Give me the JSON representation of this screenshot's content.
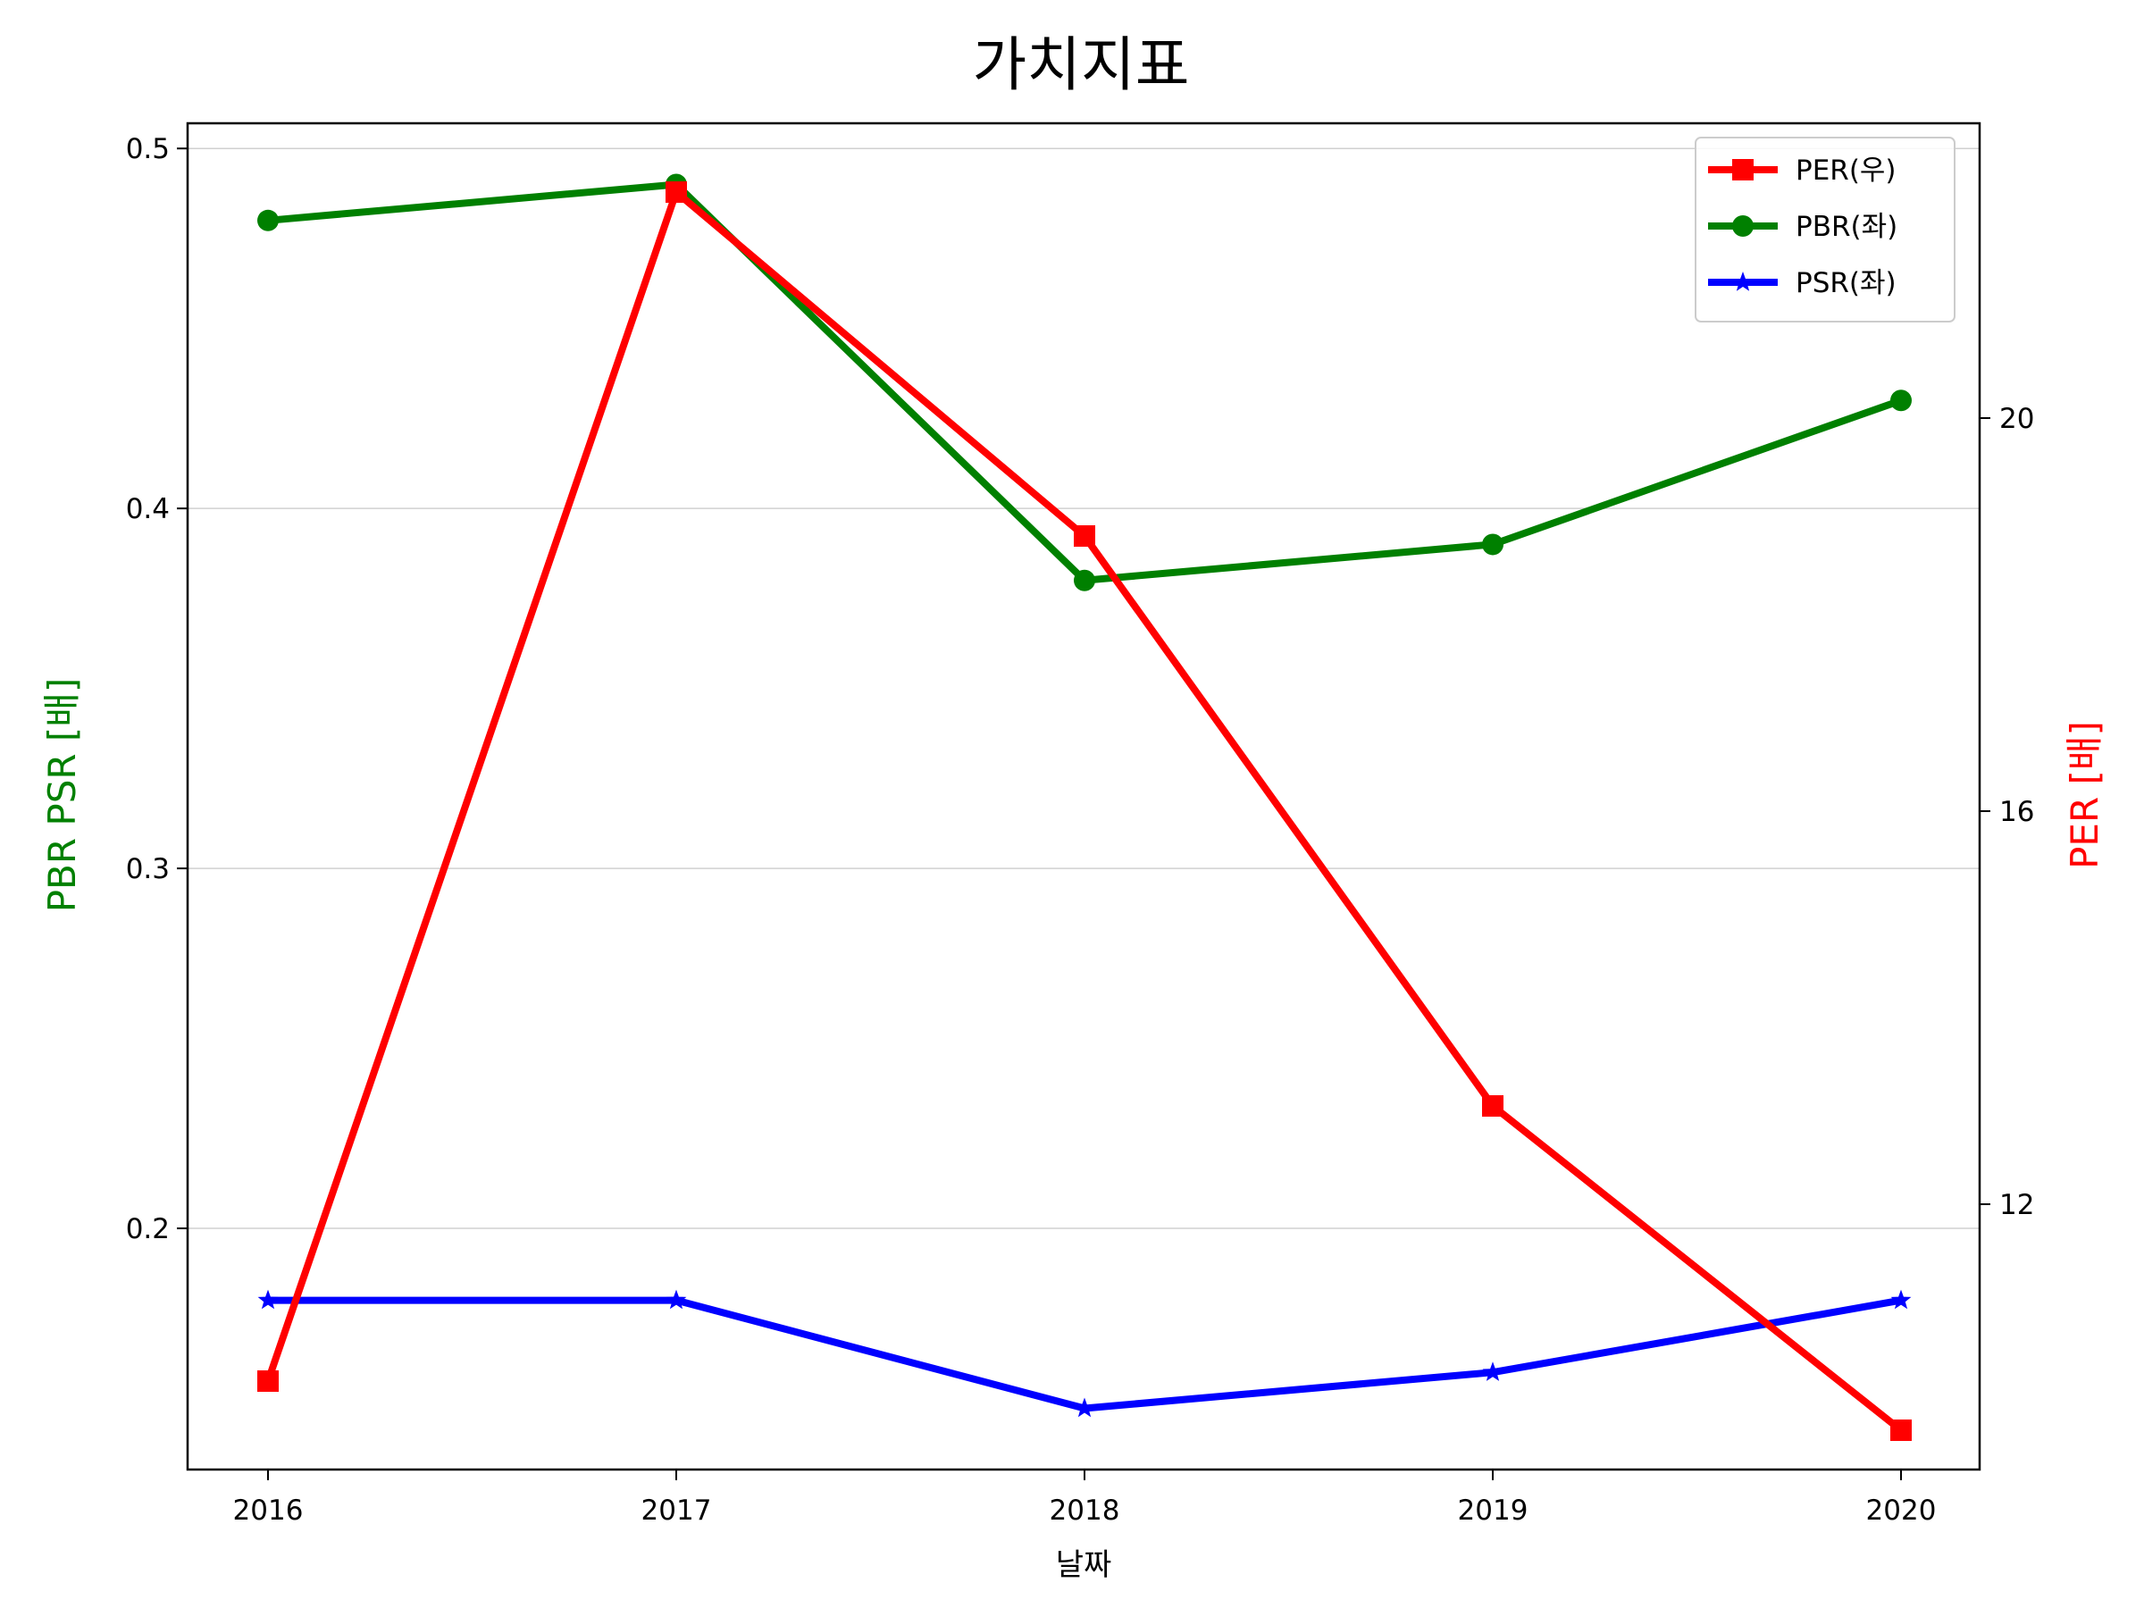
{
  "chart_data": {
    "type": "line",
    "title": "가치지표",
    "xlabel": "날짜",
    "ylabel_left": "PBR PSR [배]",
    "ylabel_right": "PER [배]",
    "ylabel_left_color": "#008000",
    "ylabel_right_color": "#ff0000",
    "categories": [
      "2016",
      "2017",
      "2018",
      "2019",
      "2020"
    ],
    "y_left": {
      "range": [
        0.133,
        0.507
      ],
      "ticks": [
        0.2,
        0.3,
        0.4,
        0.5
      ],
      "tick_labels": [
        "0.2",
        "0.3",
        "0.4",
        "0.5"
      ]
    },
    "y_right": {
      "range": [
        9.3,
        23.0
      ],
      "ticks": [
        12,
        16,
        20
      ],
      "tick_labels": [
        "12",
        "16",
        "20"
      ]
    },
    "grid": "horizontal (left axis)",
    "legend_position": "top-right",
    "series": [
      {
        "name": "PER(우)",
        "axis": "right",
        "color": "#ff0000",
        "marker": "square",
        "values": [
          10.2,
          22.3,
          18.8,
          13.0,
          9.7
        ]
      },
      {
        "name": "PBR(좌)",
        "axis": "left",
        "color": "#008000",
        "marker": "circle",
        "values": [
          0.48,
          0.49,
          0.38,
          0.39,
          0.43
        ]
      },
      {
        "name": "PSR(좌)",
        "axis": "left",
        "color": "#0000ff",
        "marker": "star",
        "values": [
          0.18,
          0.18,
          0.15,
          0.16,
          0.18
        ]
      }
    ]
  }
}
